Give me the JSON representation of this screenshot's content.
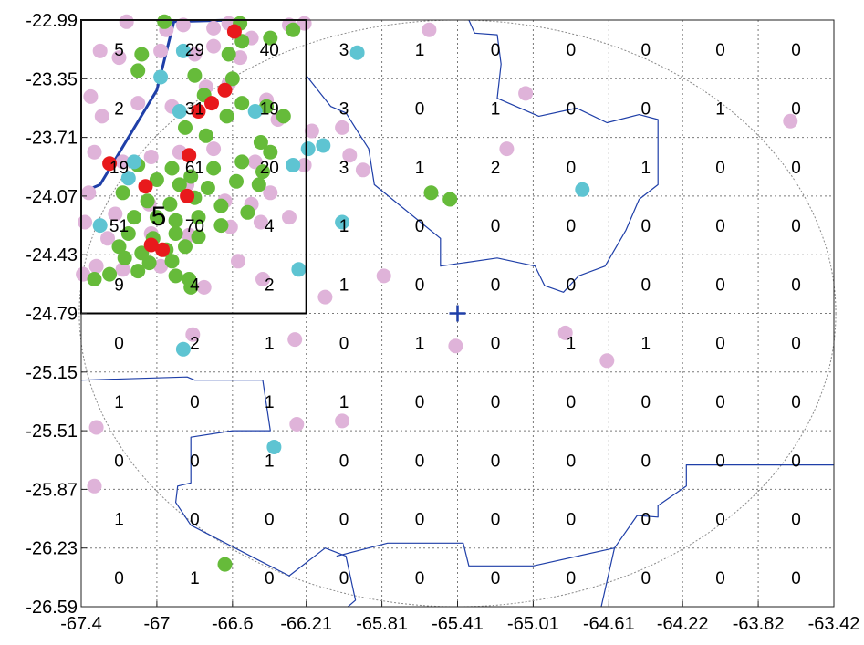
{
  "chart_data": {
    "type": "scatter",
    "title": "",
    "xlabel": "",
    "ylabel": "",
    "xlim": [
      -67.4,
      -63.42
    ],
    "ylim": [
      -26.59,
      -22.99
    ],
    "x_ticks": [
      -67.4,
      -67.0,
      -66.6,
      -66.21,
      -65.81,
      -65.41,
      -65.01,
      -64.61,
      -64.22,
      -63.82,
      -63.42
    ],
    "x_tick_labels": [
      "-67.4",
      "-67",
      "-66.6",
      "-66.21",
      "-65.81",
      "-65.41",
      "-65.01",
      "-64.61",
      "-64.22",
      "-63.82",
      "-63.42"
    ],
    "y_ticks": [
      -22.99,
      -23.35,
      -23.71,
      -24.07,
      -24.43,
      -24.79,
      -25.15,
      -25.51,
      -25.87,
      -26.23,
      -26.59
    ],
    "y_tick_labels": [
      "-22.99",
      "-23.35",
      "-23.71",
      "-24.07",
      "-24.43",
      "-24.79",
      "-25.15",
      "-25.51",
      "-25.87",
      "-26.23",
      "-26.59"
    ],
    "grid": true,
    "grid_style": "dotted",
    "cell_counts": [
      [
        "5",
        "29",
        "40",
        "3",
        "1",
        "0",
        "0",
        "0",
        "0",
        "0"
      ],
      [
        "2",
        "31",
        "19",
        "3",
        "0",
        "1",
        "0",
        "0",
        "1",
        "0"
      ],
      [
        "19",
        "61",
        "20",
        "3",
        "1",
        "2",
        "0",
        "1",
        "0",
        "0"
      ],
      [
        "51",
        "70",
        "4",
        "1",
        "0",
        "0",
        "0",
        "0",
        "0",
        "0"
      ],
      [
        "9",
        "4",
        "2",
        "1",
        "0",
        "0",
        "0",
        "0",
        "0",
        "0"
      ],
      [
        "0",
        "2",
        "1",
        "0",
        "1",
        "0",
        "1",
        "1",
        "0",
        "0"
      ],
      [
        "1",
        "0",
        "1",
        "1",
        "0",
        "0",
        "0",
        "0",
        "0",
        "0"
      ],
      [
        "0",
        "0",
        "1",
        "0",
        "0",
        "0",
        "0",
        "0",
        "0",
        "0"
      ],
      [
        "1",
        "0",
        "0",
        "0",
        "0",
        "0",
        "0",
        "0",
        "0",
        "0"
      ],
      [
        "0",
        "1",
        "0",
        "0",
        "0",
        "0",
        "0",
        "0",
        "0",
        "0"
      ]
    ],
    "inset_label": "5",
    "inset_label_position": [
      -66.99,
      -24.25
    ],
    "inset_box": {
      "x": [
        -67.4,
        -66.21
      ],
      "y": [
        -24.79,
        -22.99
      ]
    },
    "center_marker": {
      "x": -65.41,
      "y": -24.79,
      "symbol": "+"
    },
    "circle": {
      "cx": -65.41,
      "cy": -24.79,
      "rx": 2.0,
      "ry": 1.8
    },
    "colors": {
      "pink": "#dfb3d9",
      "green": "#66bb3a",
      "cyan": "#5ec4d2",
      "red": "#e8191c",
      "blue_line": "#1f3fa8",
      "frame": "#000000",
      "grid": "#7a7a7a"
    },
    "series": [
      {
        "color_key": "pink",
        "points": [
          [
            -67.16,
            -23.0
          ],
          [
            -66.95,
            -23.05
          ],
          [
            -66.86,
            -23.02
          ],
          [
            -66.7,
            -23.04
          ],
          [
            -66.62,
            -23.01
          ],
          [
            -66.3,
            -23.02
          ],
          [
            -66.22,
            -23.01
          ],
          [
            -65.56,
            -23.05
          ],
          [
            -67.3,
            -23.18
          ],
          [
            -67.2,
            -23.22
          ],
          [
            -66.98,
            -23.18
          ],
          [
            -66.8,
            -23.2
          ],
          [
            -66.7,
            -23.15
          ],
          [
            -66.56,
            -23.22
          ],
          [
            -66.5,
            -23.1
          ],
          [
            -67.35,
            -23.46
          ],
          [
            -67.29,
            -23.58
          ],
          [
            -67.1,
            -23.5
          ],
          [
            -66.92,
            -23.52
          ],
          [
            -66.74,
            -23.4
          ],
          [
            -66.62,
            -23.38
          ],
          [
            -66.42,
            -23.48
          ],
          [
            -66.36,
            -23.6
          ],
          [
            -66.18,
            -23.67
          ],
          [
            -66.02,
            -23.65
          ],
          [
            -65.05,
            -23.44
          ],
          [
            -67.33,
            -23.8
          ],
          [
            -67.18,
            -23.86
          ],
          [
            -67.03,
            -23.83
          ],
          [
            -66.88,
            -23.8
          ],
          [
            -66.7,
            -23.78
          ],
          [
            -66.48,
            -23.86
          ],
          [
            -66.22,
            -23.88
          ],
          [
            -65.98,
            -23.82
          ],
          [
            -65.91,
            -23.91
          ],
          [
            -65.15,
            -23.78
          ],
          [
            -67.36,
            -24.05
          ],
          [
            -67.22,
            -24.18
          ],
          [
            -67.04,
            -24.12
          ],
          [
            -66.84,
            -24.0
          ],
          [
            -66.64,
            -24.1
          ],
          [
            -66.5,
            -24.12
          ],
          [
            -66.4,
            -24.05
          ],
          [
            -66.3,
            -24.2
          ],
          [
            -67.38,
            -24.23
          ],
          [
            -67.26,
            -24.33
          ],
          [
            -67.03,
            -24.3
          ],
          [
            -66.83,
            -24.31
          ],
          [
            -66.61,
            -24.26
          ],
          [
            -66.45,
            -24.23
          ],
          [
            -67.32,
            -24.5
          ],
          [
            -67.18,
            -24.52
          ],
          [
            -66.98,
            -24.5
          ],
          [
            -66.75,
            -24.63
          ],
          [
            -66.57,
            -24.47
          ],
          [
            -66.44,
            -24.58
          ],
          [
            -67.39,
            -24.55
          ],
          [
            -66.11,
            -24.69
          ],
          [
            -65.8,
            -24.56
          ],
          [
            -66.81,
            -24.92
          ],
          [
            -66.27,
            -24.95
          ],
          [
            -65.42,
            -24.99
          ],
          [
            -64.84,
            -24.91
          ],
          [
            -64.62,
            -25.08
          ],
          [
            -66.26,
            -25.47
          ],
          [
            -66.02,
            -25.45
          ],
          [
            -67.32,
            -25.49
          ],
          [
            -67.33,
            -25.85
          ],
          [
            -63.65,
            -23.61
          ]
        ]
      },
      {
        "color_key": "green",
        "points": [
          [
            -66.96,
            -23.0
          ],
          [
            -66.56,
            -23.01
          ],
          [
            -66.28,
            -23.05
          ],
          [
            -66.4,
            -23.1
          ],
          [
            -66.55,
            -23.12
          ],
          [
            -66.62,
            -23.2
          ],
          [
            -67.08,
            -23.2
          ],
          [
            -67.1,
            -23.3
          ],
          [
            -66.8,
            -23.33
          ],
          [
            -66.6,
            -23.35
          ],
          [
            -66.75,
            -23.45
          ],
          [
            -66.55,
            -23.5
          ],
          [
            -66.63,
            -23.58
          ],
          [
            -66.42,
            -23.52
          ],
          [
            -66.33,
            -23.58
          ],
          [
            -66.85,
            -23.65
          ],
          [
            -66.74,
            -23.7
          ],
          [
            -66.45,
            -23.74
          ],
          [
            -67.1,
            -23.88
          ],
          [
            -66.92,
            -23.9
          ],
          [
            -66.82,
            -23.95
          ],
          [
            -66.7,
            -23.9
          ],
          [
            -66.55,
            -23.86
          ],
          [
            -66.44,
            -23.92
          ],
          [
            -66.4,
            -23.8
          ],
          [
            -67.0,
            -23.97
          ],
          [
            -66.88,
            -24.0
          ],
          [
            -66.73,
            -24.02
          ],
          [
            -66.58,
            -23.98
          ],
          [
            -66.46,
            -24.0
          ],
          [
            -67.18,
            -24.05
          ],
          [
            -67.05,
            -24.1
          ],
          [
            -66.93,
            -24.12
          ],
          [
            -66.8,
            -24.08
          ],
          [
            -66.66,
            -24.13
          ],
          [
            -66.52,
            -24.17
          ],
          [
            -67.12,
            -24.2
          ],
          [
            -67.0,
            -24.2
          ],
          [
            -66.9,
            -24.22
          ],
          [
            -66.78,
            -24.2
          ],
          [
            -66.66,
            -24.25
          ],
          [
            -67.15,
            -24.3
          ],
          [
            -67.02,
            -24.33
          ],
          [
            -66.9,
            -24.3
          ],
          [
            -66.78,
            -24.32
          ],
          [
            -67.2,
            -24.38
          ],
          [
            -67.08,
            -24.42
          ],
          [
            -66.95,
            -24.4
          ],
          [
            -66.85,
            -24.38
          ],
          [
            -67.17,
            -24.45
          ],
          [
            -67.04,
            -24.48
          ],
          [
            -66.92,
            -24.47
          ],
          [
            -67.25,
            -24.55
          ],
          [
            -67.1,
            -24.53
          ],
          [
            -66.9,
            -24.56
          ],
          [
            -66.83,
            -24.58
          ],
          [
            -66.82,
            -24.63
          ],
          [
            -67.33,
            -24.58
          ],
          [
            -65.55,
            -24.05
          ],
          [
            -65.45,
            -24.09
          ],
          [
            -66.64,
            -26.33
          ]
        ]
      },
      {
        "color_key": "cyan",
        "points": [
          [
            -66.86,
            -23.18
          ],
          [
            -65.94,
            -23.19
          ],
          [
            -66.98,
            -23.34
          ],
          [
            -66.88,
            -23.55
          ],
          [
            -66.48,
            -23.55
          ],
          [
            -67.12,
            -23.86
          ],
          [
            -67.15,
            -23.96
          ],
          [
            -66.2,
            -23.78
          ],
          [
            -66.28,
            -23.88
          ],
          [
            -66.12,
            -23.76
          ],
          [
            -67.3,
            -24.25
          ],
          [
            -66.02,
            -24.23
          ],
          [
            -66.25,
            -24.52
          ],
          [
            -64.75,
            -24.03
          ],
          [
            -66.86,
            -25.01
          ],
          [
            -66.38,
            -25.61
          ]
        ]
      },
      {
        "color_key": "red",
        "points": [
          [
            -66.59,
            -23.06
          ],
          [
            -66.64,
            -23.42
          ],
          [
            -66.71,
            -23.5
          ],
          [
            -66.78,
            -23.55
          ],
          [
            -66.83,
            -23.82
          ],
          [
            -67.25,
            -23.87
          ],
          [
            -67.06,
            -24.01
          ],
          [
            -66.84,
            -24.07
          ],
          [
            -67.03,
            -24.37
          ],
          [
            -66.97,
            -24.4
          ]
        ]
      }
    ],
    "boundary_lines": [
      {
        "weight": "thick",
        "points": [
          [
            -67.4,
            -24.05
          ],
          [
            -67.3,
            -24.0
          ],
          [
            -67.0,
            -23.42
          ],
          [
            -66.91,
            -23.0
          ],
          [
            -66.6,
            -22.99
          ]
        ]
      },
      {
        "weight": "thin",
        "points": [
          [
            -66.21,
            -23.33
          ],
          [
            -66.08,
            -23.52
          ],
          [
            -66.0,
            -23.56
          ],
          [
            -65.94,
            -23.67
          ],
          [
            -65.88,
            -23.78
          ],
          [
            -65.85,
            -24.0
          ],
          [
            -65.5,
            -24.33
          ],
          [
            -65.5,
            -24.5
          ],
          [
            -65.2,
            -24.45
          ],
          [
            -65.0,
            -24.5
          ],
          [
            -64.95,
            -24.62
          ],
          [
            -64.85,
            -24.66
          ],
          [
            -64.77,
            -24.56
          ],
          [
            -64.63,
            -24.5
          ],
          [
            -64.52,
            -24.28
          ],
          [
            -64.45,
            -24.09
          ],
          [
            -64.35,
            -24.0
          ],
          [
            -64.35,
            -23.6
          ],
          [
            -64.45,
            -23.57
          ],
          [
            -64.62,
            -23.62
          ],
          [
            -64.78,
            -23.53
          ],
          [
            -64.98,
            -23.58
          ],
          [
            -65.2,
            -23.47
          ],
          [
            -65.18,
            -23.26
          ],
          [
            -65.2,
            -23.08
          ],
          [
            -65.32,
            -23.07
          ],
          [
            -65.35,
            -22.99
          ]
        ]
      },
      {
        "weight": "thin",
        "points": [
          [
            -67.4,
            -25.2
          ],
          [
            -66.84,
            -25.18
          ],
          [
            -66.8,
            -25.2
          ],
          [
            -66.44,
            -25.2
          ],
          [
            -66.4,
            -25.51
          ],
          [
            -66.6,
            -25.51
          ],
          [
            -66.82,
            -25.55
          ],
          [
            -66.82,
            -25.83
          ],
          [
            -66.89,
            -25.85
          ],
          [
            -66.9,
            -25.95
          ],
          [
            -66.82,
            -26.09
          ],
          [
            -66.47,
            -26.3
          ],
          [
            -66.3,
            -26.4
          ],
          [
            -66.11,
            -26.23
          ],
          [
            -66.0,
            -26.28
          ],
          [
            -65.95,
            -26.55
          ],
          [
            -65.99,
            -26.59
          ]
        ]
      },
      {
        "weight": "thin",
        "points": [
          [
            -66.05,
            -26.28
          ],
          [
            -65.78,
            -26.2
          ],
          [
            -65.38,
            -26.2
          ],
          [
            -65.35,
            -26.34
          ],
          [
            -65.01,
            -26.34
          ],
          [
            -64.58,
            -26.23
          ],
          [
            -64.46,
            -26.03
          ],
          [
            -64.35,
            -26.04
          ],
          [
            -64.35,
            -25.97
          ],
          [
            -64.2,
            -25.85
          ],
          [
            -64.2,
            -25.72
          ],
          [
            -63.42,
            -25.72
          ]
        ]
      },
      {
        "weight": "thin",
        "points": [
          [
            -64.58,
            -26.23
          ],
          [
            -64.65,
            -26.59
          ]
        ]
      }
    ]
  }
}
